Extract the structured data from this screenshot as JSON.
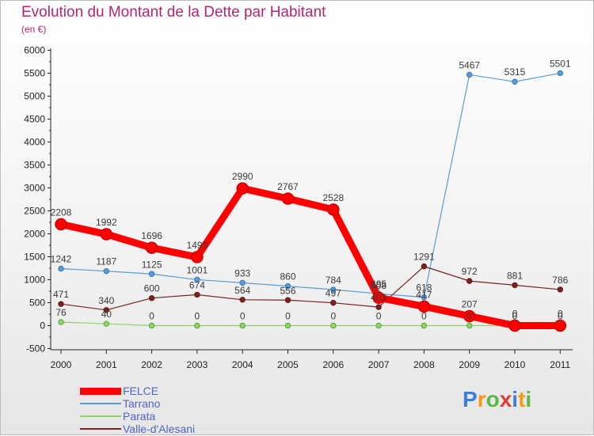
{
  "header": {
    "title": "Evolution du Montant de la Dette par Habitant",
    "unit": "(en €)"
  },
  "chart_data": {
    "type": "line",
    "x": [
      "2000",
      "2001",
      "2002",
      "2003",
      "2004",
      "2005",
      "2006",
      "2007",
      "2008",
      "2009",
      "2010",
      "2011"
    ],
    "ylim": [
      -500,
      6000
    ],
    "yticks": [
      -500,
      0,
      500,
      1000,
      1500,
      2000,
      2500,
      3000,
      3500,
      4000,
      4500,
      5000,
      5500,
      6000
    ],
    "grid": false,
    "legend_position": "bottom-left",
    "series": [
      {
        "name": "FELCE",
        "color": "#ff0000",
        "values": [
          2208,
          1992,
          1696,
          1493,
          2990,
          2767,
          2528,
          608,
          417,
          207,
          0,
          0
        ]
      },
      {
        "name": "Tarrano",
        "color": "#5b9bd5",
        "values": [
          1242,
          1187,
          1125,
          1001,
          933,
          860,
          784,
          695,
          618,
          5467,
          5315,
          5501
        ]
      },
      {
        "name": "Parata",
        "color": "#8ed36a",
        "values": [
          76,
          40,
          0,
          0,
          0,
          0,
          0,
          0,
          0,
          0,
          0,
          0
        ]
      },
      {
        "name": "Valle-d'Alesani",
        "color": "#7a2222",
        "values": [
          471,
          340,
          600,
          674,
          564,
          556,
          497,
          403,
          1291,
          972,
          881,
          786
        ]
      }
    ]
  },
  "branding": {
    "logo_letters": [
      "P",
      "r",
      "o",
      "x",
      "i",
      "t",
      "i"
    ],
    "logo_colors": [
      "#3f7fd9",
      "#f39a1d",
      "#57b947",
      "#e23b3b",
      "#3f7fd9",
      "#f39a1d",
      "#57b947"
    ]
  }
}
